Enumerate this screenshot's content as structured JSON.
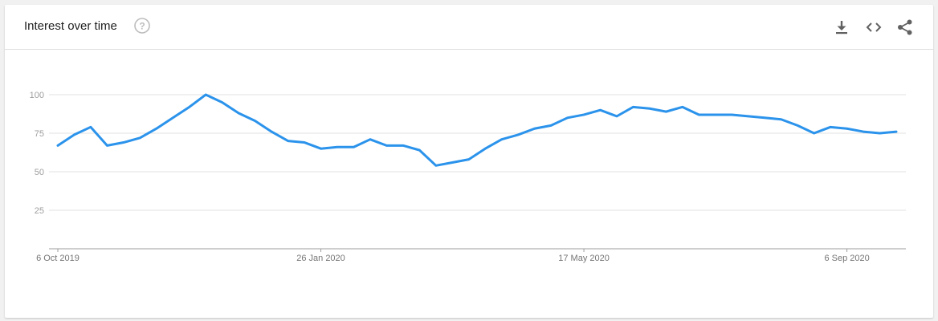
{
  "header": {
    "title": "Interest over time",
    "help_icon": "help-circle-icon",
    "actions": [
      "download-icon",
      "embed-code-icon",
      "share-icon"
    ]
  },
  "colors": {
    "line": "#2b93eb",
    "grid": "#e0e0e0",
    "axis": "#9e9e9e",
    "tick_text": "#9e9e9e",
    "x_tick_text": "#757575"
  },
  "chart_data": {
    "type": "line",
    "title": "",
    "xlabel": "",
    "ylabel": "",
    "ylim": [
      0,
      100
    ],
    "y_ticks": [
      25,
      50,
      75,
      100
    ],
    "grid": true,
    "x_tick_labels": [
      "6 Oct 2019",
      "26 Jan 2020",
      "17 May 2020",
      "6 Sep 2020"
    ],
    "x": [
      "2019-10-06",
      "2019-10-13",
      "2019-10-20",
      "2019-10-27",
      "2019-11-03",
      "2019-11-10",
      "2019-11-17",
      "2019-11-24",
      "2019-12-01",
      "2019-12-08",
      "2019-12-15",
      "2019-12-22",
      "2019-12-29",
      "2020-01-05",
      "2020-01-12",
      "2020-01-19",
      "2020-01-26",
      "2020-02-02",
      "2020-02-09",
      "2020-02-16",
      "2020-02-23",
      "2020-03-01",
      "2020-03-08",
      "2020-03-15",
      "2020-03-22",
      "2020-03-29",
      "2020-04-05",
      "2020-04-12",
      "2020-04-19",
      "2020-04-26",
      "2020-05-03",
      "2020-05-10",
      "2020-05-17",
      "2020-05-24",
      "2020-05-31",
      "2020-06-07",
      "2020-06-14",
      "2020-06-21",
      "2020-06-28",
      "2020-07-05",
      "2020-07-12",
      "2020-07-19",
      "2020-07-26",
      "2020-08-02",
      "2020-08-09",
      "2020-08-16",
      "2020-08-23",
      "2020-08-30",
      "2020-09-06",
      "2020-09-13",
      "2020-09-20",
      "2020-09-27"
    ],
    "series": [
      {
        "values": [
          67,
          74,
          79,
          67,
          69,
          72,
          78,
          85,
          92,
          100,
          95,
          88,
          83,
          76,
          70,
          69,
          65,
          66,
          66,
          71,
          67,
          67,
          64,
          54,
          56,
          58,
          65,
          71,
          74,
          78,
          80,
          85,
          87,
          90,
          86,
          92,
          91,
          89,
          92,
          87,
          87,
          87,
          86,
          85,
          84,
          80,
          75,
          79,
          78,
          76,
          75,
          76
        ]
      }
    ]
  }
}
